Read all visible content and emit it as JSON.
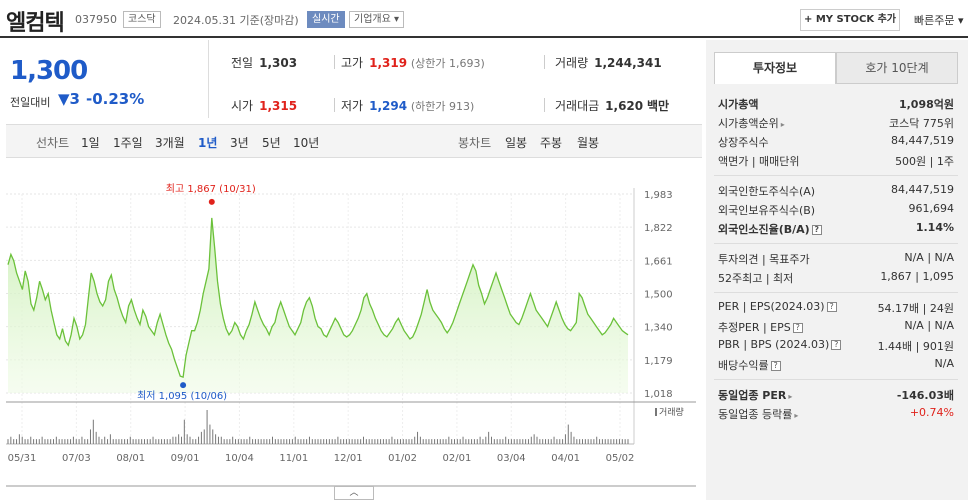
{
  "header": {
    "name": "엘컴텍",
    "code": "037950",
    "market": "코스닥",
    "date": "2024.05.31",
    "date_suffix": "기준(장마감)",
    "realtime": "실시간",
    "company": "기업개요",
    "company_arrow": "▾",
    "mystock_plus": "+",
    "mystock": "MY STOCK 추가",
    "quick_order": "빠른주문",
    "quick_order_arrow": "▾"
  },
  "price": {
    "current": "1,300",
    "change_label": "전일대비",
    "change_arrow": "▼",
    "change": "3",
    "rate": "-0.23%"
  },
  "quote": {
    "prev_label": "전일",
    "prev": "1,303",
    "high_label": "고가",
    "high": "1,319",
    "upper_label": "(상한가",
    "upper": "1,693)",
    "volume_label": "거래량",
    "volume": "1,244,341",
    "open_label": "시가",
    "open": "1,315",
    "low_label": "저가",
    "low": "1,294",
    "lower_label": "(하한가",
    "lower": "913)",
    "amount_label": "거래대금",
    "amount": "1,620",
    "amount_unit": "백만"
  },
  "period": {
    "line_label": "선차트",
    "items": [
      "1일",
      "1주일",
      "3개월",
      "1년",
      "3년",
      "5년",
      "10년"
    ],
    "active": "1년",
    "candle_label": "봉차트",
    "candle_items": [
      "일봉",
      "주봉",
      "월봉"
    ]
  },
  "chart_data": {
    "type": "area",
    "y_ticks": [
      "1,983",
      "1,822",
      "1,661",
      "1,500",
      "1,340",
      "1,179",
      "1,018"
    ],
    "ylim": [
      1018,
      1983
    ],
    "x_ticks": [
      "05/31",
      "07/03",
      "08/01",
      "09/01",
      "10/04",
      "11/01",
      "12/01",
      "01/02",
      "02/01",
      "03/04",
      "04/01",
      "05/02"
    ],
    "high_annotation": "최고 1,867 (10/31)",
    "low_annotation": "최저 1,095 (10/06)",
    "high": 1867,
    "low": 1095,
    "volume_label": "거래량",
    "price": [
      1640,
      1690,
      1660,
      1600,
      1560,
      1520,
      1610,
      1560,
      1450,
      1420,
      1480,
      1560,
      1520,
      1470,
      1500,
      1420,
      1360,
      1300,
      1280,
      1330,
      1270,
      1250,
      1300,
      1380,
      1340,
      1280,
      1300,
      1350,
      1480,
      1600,
      1560,
      1500,
      1460,
      1440,
      1470,
      1560,
      1590,
      1520,
      1480,
      1430,
      1390,
      1360,
      1440,
      1470,
      1420,
      1380,
      1350,
      1420,
      1390,
      1340,
      1320,
      1300,
      1360,
      1400,
      1350,
      1300,
      1260,
      1230,
      1180,
      1140,
      1100,
      1095,
      1200,
      1260,
      1320,
      1320,
      1360,
      1420,
      1500,
      1560,
      1620,
      1867,
      1720,
      1560,
      1450,
      1380,
      1330,
      1300,
      1320,
      1360,
      1340,
      1300,
      1280,
      1320,
      1350,
      1400,
      1460,
      1420,
      1380,
      1350,
      1330,
      1300,
      1340,
      1360,
      1420,
      1460,
      1420,
      1380,
      1340,
      1320,
      1300,
      1330,
      1360,
      1420,
      1460,
      1480,
      1440,
      1380,
      1340,
      1330,
      1300,
      1290,
      1320,
      1350,
      1380,
      1360,
      1330,
      1300,
      1290,
      1300,
      1320,
      1350,
      1380,
      1420,
      1480,
      1500,
      1450,
      1420,
      1380,
      1350,
      1320,
      1300,
      1290,
      1310,
      1330,
      1360,
      1380,
      1350,
      1320,
      1300,
      1280,
      1290,
      1320,
      1360,
      1400,
      1460,
      1520,
      1460,
      1420,
      1400,
      1380,
      1360,
      1330,
      1310,
      1330,
      1360,
      1400,
      1440,
      1480,
      1520,
      1560,
      1600,
      1640,
      1610,
      1540,
      1500,
      1450,
      1480,
      1520,
      1560,
      1600,
      1560,
      1520,
      1480,
      1440,
      1400,
      1380,
      1360,
      1350,
      1380,
      1420,
      1460,
      1500,
      1460,
      1420,
      1400,
      1380,
      1360,
      1340,
      1380,
      1420,
      1460,
      1420,
      1380,
      1350,
      1330,
      1320,
      1340,
      1360,
      1500,
      1480,
      1440,
      1400,
      1380,
      1360,
      1340,
      1320,
      1300,
      1310,
      1330,
      1350,
      1380,
      1360,
      1340,
      1320,
      1310,
      1300
    ],
    "volume": [
      2,
      3,
      2,
      2,
      4,
      3,
      2,
      2,
      3,
      2,
      2,
      2,
      3,
      2,
      2,
      2,
      2,
      3,
      2,
      2,
      2,
      2,
      2,
      3,
      2,
      2,
      3,
      2,
      2,
      6,
      10,
      5,
      3,
      2,
      3,
      2,
      4,
      2,
      2,
      2,
      2,
      2,
      2,
      3,
      2,
      2,
      2,
      2,
      2,
      2,
      2,
      3,
      2,
      2,
      2,
      2,
      2,
      2,
      3,
      3,
      4,
      3,
      10,
      4,
      3,
      2,
      2,
      3,
      5,
      6,
      14,
      8,
      6,
      4,
      3,
      3,
      2,
      2,
      2,
      3,
      2,
      2,
      2,
      2,
      2,
      3,
      2,
      2,
      2,
      2,
      2,
      2,
      2,
      3,
      2,
      2,
      2,
      2,
      2,
      2,
      2,
      3,
      2,
      2,
      2,
      2,
      3,
      2,
      2,
      2,
      2,
      2,
      2,
      2,
      2,
      2,
      3,
      2,
      2,
      2,
      2,
      2,
      2,
      2,
      2,
      3,
      2,
      2,
      2,
      2,
      2,
      2,
      2,
      2,
      2,
      3,
      2,
      2,
      2,
      2,
      2,
      2,
      2,
      3,
      5,
      3,
      2,
      2,
      2,
      2,
      2,
      2,
      2,
      2,
      2,
      3,
      2,
      2,
      2,
      2,
      3,
      2,
      2,
      2,
      2,
      2,
      3,
      2,
      3,
      5,
      3,
      2,
      2,
      2,
      2,
      3,
      2,
      2,
      2,
      2,
      2,
      2,
      2,
      2,
      3,
      4,
      3,
      2,
      2,
      2,
      2,
      2,
      3,
      2,
      2,
      2,
      4,
      8,
      5,
      3,
      2,
      2,
      2,
      2,
      2,
      2,
      2,
      3,
      2,
      2,
      2,
      2,
      2,
      2,
      2,
      2,
      2,
      2,
      2
    ]
  },
  "panel": {
    "tab_on": "투자정보",
    "tab_off": "호가 10단계",
    "market_cap_label": "시가총액",
    "market_cap": "1,098억원",
    "cap_rank_label": "시가총액순위",
    "cap_rank": "코스닥 775위",
    "shares_label": "상장주식수",
    "shares": "84,447,519",
    "face_label": "액면가 | 매매단위",
    "face": "500원 | 1주",
    "foreign_limit_label": "외국인한도주식수(A)",
    "foreign_limit": "84,447,519",
    "foreign_hold_label": "외국인보유주식수(B)",
    "foreign_hold": "961,694",
    "foreign_rate_label": "외국인소진율(B/A)",
    "foreign_rate": "1.14%",
    "opinion_label": "투자의견 | 목표주가",
    "opinion": "N/A | N/A",
    "week52_label": "52주최고 | 최저",
    "week52": "1,867 | 1,095",
    "per_label": "PER | EPS(2024.03)",
    "per": "54.17배 | 24원",
    "est_per_label": "추정PER | EPS",
    "est_per": "N/A | N/A",
    "pbr_label": "PBR | BPS (2024.03)",
    "pbr": "1.44배 | 901원",
    "dividend_label": "배당수익률",
    "dividend": "N/A",
    "sector_per_label": "동일업종 PER",
    "sector_per": "-146.03배",
    "sector_rate_label": "동일업종 등락률",
    "sector_rate": "+0.74%"
  }
}
